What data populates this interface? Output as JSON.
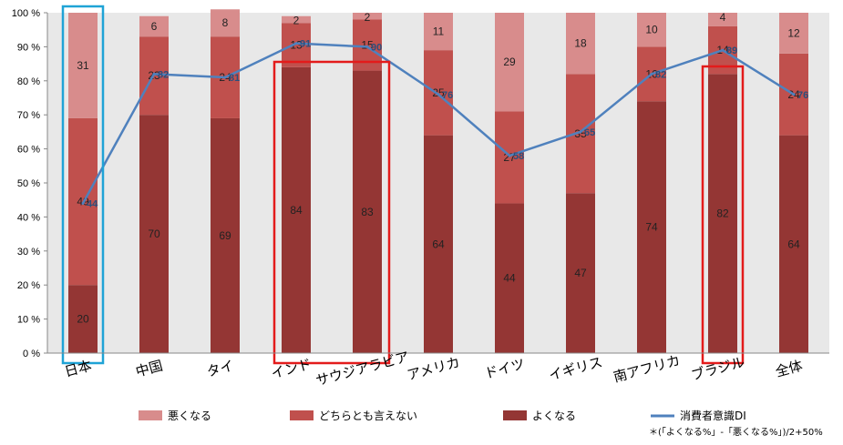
{
  "chart_data": {
    "type": "bar",
    "stacked": true,
    "categories": [
      "日本",
      "中国",
      "タイ",
      "インド",
      "サウジアラビア",
      "アメリカ",
      "ドイツ",
      "イギリス",
      "南アフリカ",
      "ブラジル",
      "全体"
    ],
    "series": [
      {
        "name": "よくなる",
        "color": "#943634",
        "values": [
          20,
          70,
          69,
          84,
          83,
          64,
          44,
          47,
          74,
          82,
          64
        ]
      },
      {
        "name": "どちらとも言えない",
        "color": "#c0504d",
        "values": [
          49,
          23,
          24,
          13,
          15,
          25,
          27,
          35,
          16,
          14,
          24
        ]
      },
      {
        "name": "悪くなる",
        "color": "#d88c8c",
        "values": [
          31,
          6,
          8,
          2,
          2,
          11,
          29,
          18,
          10,
          4,
          12
        ]
      }
    ],
    "line_series": {
      "name": "消費者意識DI",
      "color": "#4f81bd",
      "values": [
        44,
        82,
        81,
        91,
        90,
        76,
        58,
        65,
        82,
        89,
        76
      ]
    },
    "y_ticks": [
      "0 %",
      "10 %",
      "20 %",
      "30 %",
      "40 %",
      "50 %",
      "60 %",
      "70 %",
      "80 %",
      "90 %",
      "100 %"
    ],
    "ylim": [
      0,
      100
    ],
    "grid": false,
    "plot_background": "#e8e8e8",
    "legend_position": "bottom",
    "legend_order": [
      "悪くなる",
      "どちらとも言えない",
      "よくなる",
      "消費者意識DI"
    ],
    "footnote": "＊(「よくなる%」-「悪くなる%」)/2+50%",
    "highlight_boxes": [
      {
        "categories": [
          "日本"
        ],
        "color": "#1fa3d6"
      },
      {
        "categories": [
          "インド",
          "サウジアラビア"
        ],
        "color": "#e31b1b"
      },
      {
        "categories": [
          "ブラジル"
        ],
        "color": "#e31b1b"
      }
    ]
  }
}
